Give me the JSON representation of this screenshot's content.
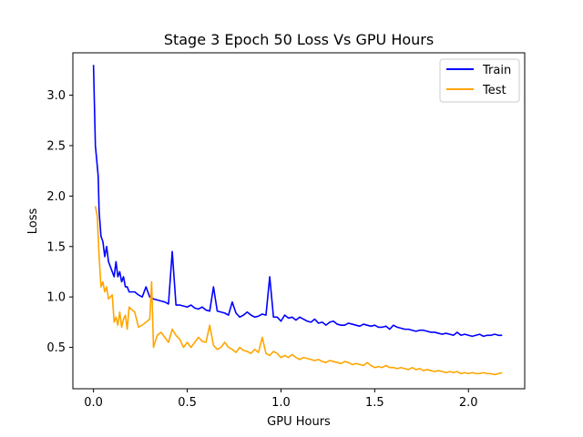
{
  "chart_data": {
    "type": "line",
    "title": "Stage 3 Epoch 50 Loss Vs GPU Hours",
    "xlabel": "GPU Hours",
    "ylabel": "Loss",
    "xlim": [
      -0.11,
      2.3
    ],
    "ylim": [
      0.09,
      3.42
    ],
    "x_ticks": [
      0.0,
      0.5,
      1.0,
      1.5,
      2.0
    ],
    "x_tick_labels": [
      "0.0",
      "0.5",
      "1.0",
      "1.5",
      "2.0"
    ],
    "y_ticks": [
      0.5,
      1.0,
      1.5,
      2.0,
      2.5,
      3.0
    ],
    "y_tick_labels": [
      "0.5",
      "1.0",
      "1.5",
      "2.0",
      "2.5",
      "3.0"
    ],
    "grid": false,
    "legend": "top-right",
    "series": [
      {
        "name": "Train",
        "color": "#0000ff",
        "x": [
          0.0,
          0.005,
          0.01,
          0.02,
          0.025,
          0.03,
          0.04,
          0.05,
          0.06,
          0.07,
          0.08,
          0.09,
          0.1,
          0.11,
          0.12,
          0.13,
          0.14,
          0.15,
          0.16,
          0.17,
          0.18,
          0.19,
          0.2,
          0.22,
          0.24,
          0.26,
          0.28,
          0.3,
          0.32,
          0.34,
          0.36,
          0.38,
          0.4,
          0.42,
          0.44,
          0.46,
          0.48,
          0.5,
          0.52,
          0.54,
          0.56,
          0.58,
          0.6,
          0.62,
          0.64,
          0.66,
          0.68,
          0.7,
          0.72,
          0.74,
          0.76,
          0.78,
          0.8,
          0.82,
          0.84,
          0.86,
          0.88,
          0.9,
          0.92,
          0.94,
          0.96,
          0.98,
          1.0,
          1.02,
          1.04,
          1.06,
          1.08,
          1.1,
          1.12,
          1.14,
          1.16,
          1.18,
          1.2,
          1.22,
          1.24,
          1.26,
          1.28,
          1.3,
          1.32,
          1.34,
          1.36,
          1.38,
          1.4,
          1.42,
          1.44,
          1.46,
          1.48,
          1.5,
          1.52,
          1.54,
          1.56,
          1.58,
          1.6,
          1.62,
          1.64,
          1.66,
          1.68,
          1.7,
          1.72,
          1.74,
          1.76,
          1.78,
          1.8,
          1.82,
          1.84,
          1.86,
          1.88,
          1.9,
          1.92,
          1.94,
          1.96,
          1.98,
          2.0,
          2.02,
          2.04,
          2.06,
          2.08,
          2.1,
          2.12,
          2.14,
          2.16,
          2.18
        ],
        "y": [
          3.3,
          2.9,
          2.5,
          2.3,
          2.2,
          1.85,
          1.6,
          1.55,
          1.4,
          1.5,
          1.35,
          1.3,
          1.25,
          1.2,
          1.35,
          1.2,
          1.25,
          1.15,
          1.2,
          1.1,
          1.1,
          1.05,
          1.05,
          1.05,
          1.02,
          1.0,
          1.1,
          1.0,
          0.98,
          0.97,
          0.96,
          0.95,
          0.93,
          1.45,
          0.92,
          0.92,
          0.91,
          0.9,
          0.92,
          0.89,
          0.88,
          0.9,
          0.87,
          0.86,
          1.1,
          0.86,
          0.85,
          0.84,
          0.82,
          0.95,
          0.84,
          0.8,
          0.82,
          0.85,
          0.82,
          0.8,
          0.81,
          0.83,
          0.82,
          1.2,
          0.8,
          0.8,
          0.76,
          0.82,
          0.79,
          0.8,
          0.77,
          0.8,
          0.78,
          0.76,
          0.75,
          0.78,
          0.74,
          0.75,
          0.72,
          0.75,
          0.76,
          0.73,
          0.72,
          0.72,
          0.74,
          0.73,
          0.72,
          0.71,
          0.73,
          0.72,
          0.71,
          0.72,
          0.7,
          0.7,
          0.71,
          0.68,
          0.72,
          0.7,
          0.69,
          0.68,
          0.68,
          0.67,
          0.66,
          0.67,
          0.67,
          0.66,
          0.65,
          0.65,
          0.64,
          0.63,
          0.64,
          0.63,
          0.62,
          0.65,
          0.62,
          0.63,
          0.62,
          0.61,
          0.62,
          0.63,
          0.61,
          0.62,
          0.62,
          0.63,
          0.62,
          0.62
        ]
      },
      {
        "name": "Test",
        "color": "#ffa500",
        "x": [
          0.01,
          0.02,
          0.03,
          0.04,
          0.05,
          0.06,
          0.07,
          0.08,
          0.09,
          0.1,
          0.11,
          0.12,
          0.13,
          0.14,
          0.15,
          0.16,
          0.17,
          0.18,
          0.19,
          0.2,
          0.22,
          0.24,
          0.26,
          0.28,
          0.3,
          0.31,
          0.32,
          0.34,
          0.36,
          0.38,
          0.4,
          0.42,
          0.44,
          0.46,
          0.48,
          0.5,
          0.52,
          0.54,
          0.56,
          0.58,
          0.6,
          0.62,
          0.64,
          0.66,
          0.68,
          0.7,
          0.72,
          0.74,
          0.76,
          0.78,
          0.8,
          0.82,
          0.84,
          0.86,
          0.88,
          0.9,
          0.92,
          0.94,
          0.96,
          0.98,
          1.0,
          1.02,
          1.04,
          1.06,
          1.08,
          1.1,
          1.12,
          1.14,
          1.16,
          1.18,
          1.2,
          1.22,
          1.24,
          1.26,
          1.28,
          1.3,
          1.32,
          1.34,
          1.36,
          1.38,
          1.4,
          1.42,
          1.44,
          1.46,
          1.48,
          1.5,
          1.52,
          1.54,
          1.56,
          1.58,
          1.6,
          1.62,
          1.64,
          1.66,
          1.68,
          1.7,
          1.72,
          1.74,
          1.76,
          1.78,
          1.8,
          1.82,
          1.84,
          1.86,
          1.88,
          1.9,
          1.92,
          1.94,
          1.96,
          1.98,
          2.0,
          2.02,
          2.04,
          2.06,
          2.08,
          2.1,
          2.12,
          2.14,
          2.16,
          2.18
        ],
        "y": [
          1.9,
          1.8,
          1.4,
          1.1,
          1.15,
          1.05,
          1.1,
          0.98,
          1.0,
          1.02,
          0.75,
          0.8,
          0.72,
          0.85,
          0.7,
          0.78,
          0.82,
          0.68,
          0.9,
          0.88,
          0.85,
          0.7,
          0.72,
          0.75,
          0.78,
          1.15,
          0.5,
          0.62,
          0.65,
          0.6,
          0.55,
          0.68,
          0.62,
          0.58,
          0.5,
          0.55,
          0.5,
          0.55,
          0.6,
          0.56,
          0.55,
          0.72,
          0.52,
          0.48,
          0.5,
          0.55,
          0.5,
          0.48,
          0.45,
          0.5,
          0.47,
          0.46,
          0.44,
          0.48,
          0.45,
          0.6,
          0.44,
          0.42,
          0.46,
          0.44,
          0.4,
          0.42,
          0.4,
          0.43,
          0.4,
          0.38,
          0.4,
          0.39,
          0.38,
          0.37,
          0.38,
          0.36,
          0.35,
          0.37,
          0.36,
          0.35,
          0.34,
          0.36,
          0.35,
          0.33,
          0.34,
          0.33,
          0.32,
          0.35,
          0.32,
          0.3,
          0.31,
          0.3,
          0.32,
          0.3,
          0.3,
          0.29,
          0.3,
          0.29,
          0.28,
          0.3,
          0.28,
          0.29,
          0.27,
          0.28,
          0.27,
          0.26,
          0.27,
          0.26,
          0.25,
          0.26,
          0.25,
          0.26,
          0.24,
          0.25,
          0.24,
          0.25,
          0.24,
          0.24,
          0.25,
          0.24,
          0.24,
          0.23,
          0.24,
          0.25
        ]
      }
    ]
  }
}
